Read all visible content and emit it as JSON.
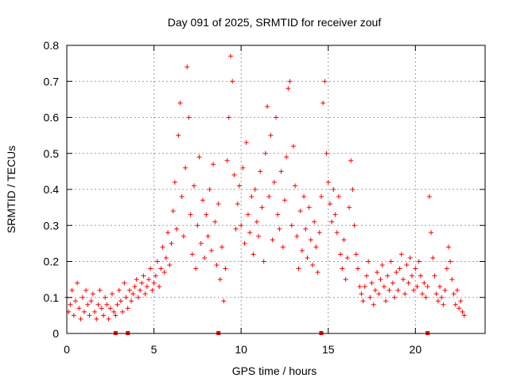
{
  "chart_data": {
    "type": "scatter",
    "title": "Day 091 of 2025, SRMTID for receiver zouf",
    "xlabel": "GPS time / hours",
    "ylabel": "SRMTID / TECUs",
    "xlim": [
      0,
      24
    ],
    "ylim": [
      0,
      0.8
    ],
    "xticks": [
      0,
      5,
      10,
      15,
      20
    ],
    "xtick_labels": [
      "0",
      "5",
      "10",
      "15",
      "20"
    ],
    "yticks": [
      0,
      0.1,
      0.2,
      0.3,
      0.4,
      0.5,
      0.6,
      0.7,
      0.8
    ],
    "ytick_labels": [
      "0",
      "0.1",
      "0.2",
      "0.3",
      "0.4",
      "0.5",
      "0.6",
      "0.7",
      "0.8"
    ],
    "grid": true,
    "marker": "+",
    "color": "#ff0000",
    "series": [
      {
        "name": "SRMTID",
        "points": [
          [
            0.0,
            0.1
          ],
          [
            0.1,
            0.06
          ],
          [
            0.2,
            0.08
          ],
          [
            0.3,
            0.12
          ],
          [
            0.4,
            0.05
          ],
          [
            0.5,
            0.09
          ],
          [
            0.6,
            0.14
          ],
          [
            0.7,
            0.07
          ],
          [
            0.8,
            0.04
          ],
          [
            0.9,
            0.1
          ],
          [
            1.0,
            0.06
          ],
          [
            1.1,
            0.12
          ],
          [
            1.2,
            0.08
          ],
          [
            1.3,
            0.05
          ],
          [
            1.4,
            0.09
          ],
          [
            1.5,
            0.11
          ],
          [
            1.6,
            0.06
          ],
          [
            1.7,
            0.04
          ],
          [
            1.8,
            0.08
          ],
          [
            1.9,
            0.12
          ],
          [
            2.0,
            0.07
          ],
          [
            2.1,
            0.05
          ],
          [
            2.2,
            0.1
          ],
          [
            2.3,
            0.08
          ],
          [
            2.4,
            0.04
          ],
          [
            2.5,
            0.07
          ],
          [
            2.6,
            0.11
          ],
          [
            2.7,
            0.06
          ],
          [
            2.8,
            0.05
          ],
          [
            2.9,
            0.08
          ],
          [
            3.0,
            0.12
          ],
          [
            3.1,
            0.09
          ],
          [
            3.2,
            0.06
          ],
          [
            3.3,
            0.14
          ],
          [
            3.4,
            0.1
          ],
          [
            3.5,
            0.07
          ],
          [
            3.6,
            0.12
          ],
          [
            3.7,
            0.09
          ],
          [
            3.8,
            0.11
          ],
          [
            3.9,
            0.13
          ],
          [
            4.0,
            0.15
          ],
          [
            4.1,
            0.1
          ],
          [
            4.2,
            0.12
          ],
          [
            4.3,
            0.14
          ],
          [
            4.4,
            0.16
          ],
          [
            4.5,
            0.11
          ],
          [
            4.6,
            0.13
          ],
          [
            4.7,
            0.15
          ],
          [
            4.8,
            0.18
          ],
          [
            4.9,
            0.12
          ],
          [
            5.0,
            0.14
          ],
          [
            5.1,
            0.16
          ],
          [
            5.2,
            0.2
          ],
          [
            5.3,
            0.13
          ],
          [
            5.4,
            0.18
          ],
          [
            5.5,
            0.24
          ],
          [
            5.6,
            0.17
          ],
          [
            5.7,
            0.21
          ],
          [
            5.8,
            0.28
          ],
          [
            5.9,
            0.19
          ],
          [
            6.0,
            0.25
          ],
          [
            6.1,
            0.34
          ],
          [
            6.2,
            0.42
          ],
          [
            6.3,
            0.29
          ],
          [
            6.4,
            0.55
          ],
          [
            6.5,
            0.64
          ],
          [
            6.6,
            0.38
          ],
          [
            6.7,
            0.27
          ],
          [
            6.8,
            0.46
          ],
          [
            6.9,
            0.74
          ],
          [
            7.0,
            0.6
          ],
          [
            7.1,
            0.33
          ],
          [
            7.2,
            0.22
          ],
          [
            7.3,
            0.41
          ],
          [
            7.4,
            0.18
          ],
          [
            7.5,
            0.3
          ],
          [
            7.6,
            0.49
          ],
          [
            7.7,
            0.25
          ],
          [
            7.8,
            0.37
          ],
          [
            7.9,
            0.21
          ],
          [
            8.0,
            0.33
          ],
          [
            8.1,
            0.27
          ],
          [
            8.2,
            0.4
          ],
          [
            8.3,
            0.23
          ],
          [
            8.4,
            0.47
          ],
          [
            8.5,
            0.31
          ],
          [
            8.6,
            0.19
          ],
          [
            8.7,
            0.36
          ],
          [
            8.8,
            0.15
          ],
          [
            8.9,
            0.24
          ],
          [
            9.0,
            0.09
          ],
          [
            9.1,
            0.18
          ],
          [
            9.2,
            0.48
          ],
          [
            9.3,
            0.6
          ],
          [
            9.4,
            0.77
          ],
          [
            9.5,
            0.7
          ],
          [
            9.6,
            0.44
          ],
          [
            9.7,
            0.29
          ],
          [
            9.8,
            0.36
          ],
          [
            9.9,
            0.41
          ],
          [
            10.0,
            0.3
          ],
          [
            10.1,
            0.46
          ],
          [
            10.2,
            0.25
          ],
          [
            10.3,
            0.53
          ],
          [
            10.4,
            0.33
          ],
          [
            10.5,
            0.28
          ],
          [
            10.6,
            0.38
          ],
          [
            10.7,
            0.22
          ],
          [
            10.8,
            0.4
          ],
          [
            10.9,
            0.31
          ],
          [
            11.0,
            0.27
          ],
          [
            11.1,
            0.45
          ],
          [
            11.2,
            0.35
          ],
          [
            11.3,
            0.2
          ],
          [
            11.4,
            0.5
          ],
          [
            11.5,
            0.63
          ],
          [
            11.6,
            0.38
          ],
          [
            11.7,
            0.55
          ],
          [
            11.8,
            0.26
          ],
          [
            11.9,
            0.42
          ],
          [
            12.0,
            0.6
          ],
          [
            12.1,
            0.33
          ],
          [
            12.2,
            0.29
          ],
          [
            12.3,
            0.45
          ],
          [
            12.4,
            0.24
          ],
          [
            12.5,
            0.37
          ],
          [
            12.6,
            0.49
          ],
          [
            12.7,
            0.68
          ],
          [
            12.8,
            0.7
          ],
          [
            12.9,
            0.3
          ],
          [
            13.0,
            0.52
          ],
          [
            13.1,
            0.41
          ],
          [
            13.2,
            0.27
          ],
          [
            13.3,
            0.18
          ],
          [
            13.4,
            0.34
          ],
          [
            13.5,
            0.23
          ],
          [
            13.6,
            0.38
          ],
          [
            13.7,
            0.29
          ],
          [
            13.8,
            0.21
          ],
          [
            13.9,
            0.35
          ],
          [
            14.0,
            0.26
          ],
          [
            14.1,
            0.19
          ],
          [
            14.2,
            0.31
          ],
          [
            14.3,
            0.24
          ],
          [
            14.4,
            0.17
          ],
          [
            14.5,
            0.28
          ],
          [
            14.6,
            0.38
          ],
          [
            14.7,
            0.64
          ],
          [
            14.8,
            0.7
          ],
          [
            14.9,
            0.5
          ],
          [
            15.0,
            0.42
          ],
          [
            15.1,
            0.36
          ],
          [
            15.2,
            0.31
          ],
          [
            15.3,
            0.4
          ],
          [
            15.4,
            0.33
          ],
          [
            15.5,
            0.28
          ],
          [
            15.6,
            0.38
          ],
          [
            15.7,
            0.22
          ],
          [
            15.8,
            0.18
          ],
          [
            15.9,
            0.26
          ],
          [
            16.0,
            0.15
          ],
          [
            16.1,
            0.21
          ],
          [
            16.2,
            0.35
          ],
          [
            16.3,
            0.48
          ],
          [
            16.4,
            0.4
          ],
          [
            16.5,
            0.3
          ],
          [
            16.6,
            0.22
          ],
          [
            16.7,
            0.18
          ],
          [
            16.8,
            0.13
          ],
          [
            16.9,
            0.11
          ],
          [
            17.0,
            0.09
          ],
          [
            17.1,
            0.13
          ],
          [
            17.2,
            0.16
          ],
          [
            17.3,
            0.2
          ],
          [
            17.4,
            0.1
          ],
          [
            17.5,
            0.14
          ],
          [
            17.6,
            0.08
          ],
          [
            17.7,
            0.12
          ],
          [
            17.8,
            0.17
          ],
          [
            17.9,
            0.11
          ],
          [
            18.0,
            0.15
          ],
          [
            18.1,
            0.19
          ],
          [
            18.2,
            0.13
          ],
          [
            18.3,
            0.09
          ],
          [
            18.4,
            0.16
          ],
          [
            18.5,
            0.12
          ],
          [
            18.6,
            0.2
          ],
          [
            18.7,
            0.14
          ],
          [
            18.8,
            0.1
          ],
          [
            18.9,
            0.17
          ],
          [
            19.0,
            0.12
          ],
          [
            19.1,
            0.18
          ],
          [
            19.2,
            0.22
          ],
          [
            19.3,
            0.15
          ],
          [
            19.4,
            0.11
          ],
          [
            19.5,
            0.19
          ],
          [
            19.6,
            0.14
          ],
          [
            19.7,
            0.21
          ],
          [
            19.8,
            0.16
          ],
          [
            19.9,
            0.12
          ],
          [
            20.0,
            0.18
          ],
          [
            20.1,
            0.13
          ],
          [
            20.2,
            0.2
          ],
          [
            20.3,
            0.16
          ],
          [
            20.4,
            0.11
          ],
          [
            20.5,
            0.14
          ],
          [
            20.6,
            0.1
          ],
          [
            20.7,
            0.13
          ],
          [
            20.8,
            0.38
          ],
          [
            20.9,
            0.28
          ],
          [
            21.0,
            0.21
          ],
          [
            21.1,
            0.16
          ],
          [
            21.2,
            0.11
          ],
          [
            21.3,
            0.09
          ],
          [
            21.4,
            0.13
          ],
          [
            21.5,
            0.1
          ],
          [
            21.6,
            0.08
          ],
          [
            21.7,
            0.12
          ],
          [
            21.8,
            0.18
          ],
          [
            21.9,
            0.24
          ],
          [
            22.0,
            0.2
          ],
          [
            22.1,
            0.15
          ],
          [
            22.2,
            0.11
          ],
          [
            22.3,
            0.08
          ],
          [
            22.4,
            0.12
          ],
          [
            22.5,
            0.07
          ],
          [
            22.6,
            0.09
          ],
          [
            22.7,
            0.06
          ],
          [
            22.8,
            0.05
          ]
        ]
      }
    ],
    "gap_markers_x": [
      2.8,
      3.5,
      8.7,
      14.6,
      20.7
    ]
  }
}
